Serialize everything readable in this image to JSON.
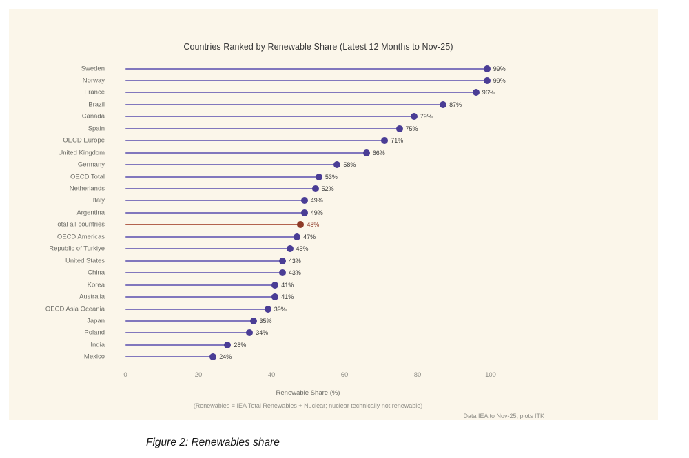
{
  "chart_data": {
    "type": "bar",
    "subtype": "horizontal-lollipop",
    "title": "Countries Ranked by Renewable Share (Latest 12 Months to Nov-25)",
    "categories": [
      "Sweden",
      "Norway",
      "France",
      "Brazil",
      "Canada",
      "Spain",
      "OECD Europe",
      "United Kingdom",
      "Germany",
      "OECD Total",
      "Netherlands",
      "Italy",
      "Argentina",
      "Total all countries",
      "OECD Americas",
      "Republic of Turkiye",
      "United States",
      "China",
      "Korea",
      "Australia",
      "OECD Asia Oceania",
      "Japan",
      "Poland",
      "India",
      "Mexico"
    ],
    "values": [
      99,
      99,
      96,
      87,
      79,
      75,
      71,
      66,
      58,
      53,
      52,
      49,
      49,
      48,
      47,
      45,
      43,
      43,
      41,
      41,
      39,
      35,
      34,
      28,
      24
    ],
    "value_suffix": "%",
    "highlight_category": "Total all countries",
    "xlabel": "Renewable Share (%)",
    "ylabel": "",
    "xlim": [
      0,
      100
    ],
    "xticks": [
      0,
      20,
      40,
      60,
      80,
      100
    ],
    "grid": false,
    "legend": null
  },
  "footnotes": {
    "note": "(Renewables = IEA Total Renewables + Nuclear; nuclear technically not renewable)",
    "credit": "Data IEA to Nov-25, plots ITK"
  },
  "caption": "Figure 2: Renewables share",
  "colors": {
    "card_background": "#fbf6ea",
    "page_background": "#ffffff",
    "stem_purple": "#8177bd",
    "dot_purple": "#4a3d95",
    "stem_red": "#b3634f",
    "dot_red": "#8e3a27",
    "value_text": "#3c3c3c",
    "value_text_highlight": "#8e3a27",
    "label_gray": "#6e6e68",
    "tick_gray": "#8e8d86",
    "title_gray": "#3a3a3a"
  }
}
